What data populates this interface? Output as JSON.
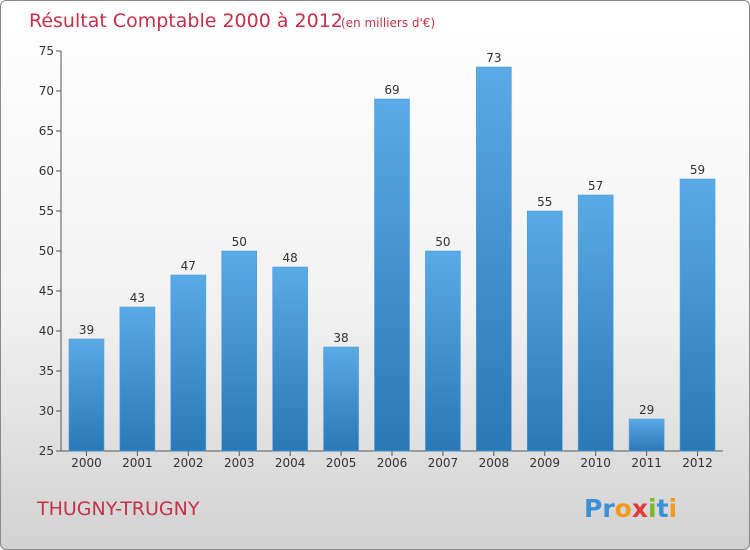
{
  "chart_data": {
    "type": "bar",
    "title": "Résultat Comptable 2000 à 2012",
    "subtitle": "(en milliers d'€)",
    "categories": [
      "2000",
      "2001",
      "2002",
      "2003",
      "2004",
      "2005",
      "2006",
      "2007",
      "2008",
      "2009",
      "2010",
      "2011",
      "2012"
    ],
    "values": [
      39,
      43,
      47,
      50,
      48,
      38,
      69,
      50,
      73,
      55,
      57,
      29,
      59
    ],
    "ylim": [
      25,
      75
    ],
    "yticks": [
      25,
      30,
      35,
      40,
      45,
      50,
      55,
      60,
      65,
      70,
      75
    ],
    "xlabel": "",
    "ylabel": "",
    "grid": false,
    "colors": {
      "bar_top": "#5aaae6",
      "bar_bottom": "#2a78b6",
      "text_accent": "#c8304a"
    }
  },
  "footer": {
    "commune": "THUGNY-TRUGNY",
    "logo_text": "Proxiti",
    "logo_letters": [
      {
        "ch": "P",
        "color": "#3b8fd4"
      },
      {
        "ch": "r",
        "color": "#3b8fd4"
      },
      {
        "ch": "o",
        "color": "#f29a1d"
      },
      {
        "ch": "x",
        "color": "#e23a3a"
      },
      {
        "ch": "i",
        "color": "#7ab82e"
      },
      {
        "ch": "t",
        "color": "#3b8fd4"
      },
      {
        "ch": "i",
        "color": "#f29a1d"
      }
    ]
  }
}
